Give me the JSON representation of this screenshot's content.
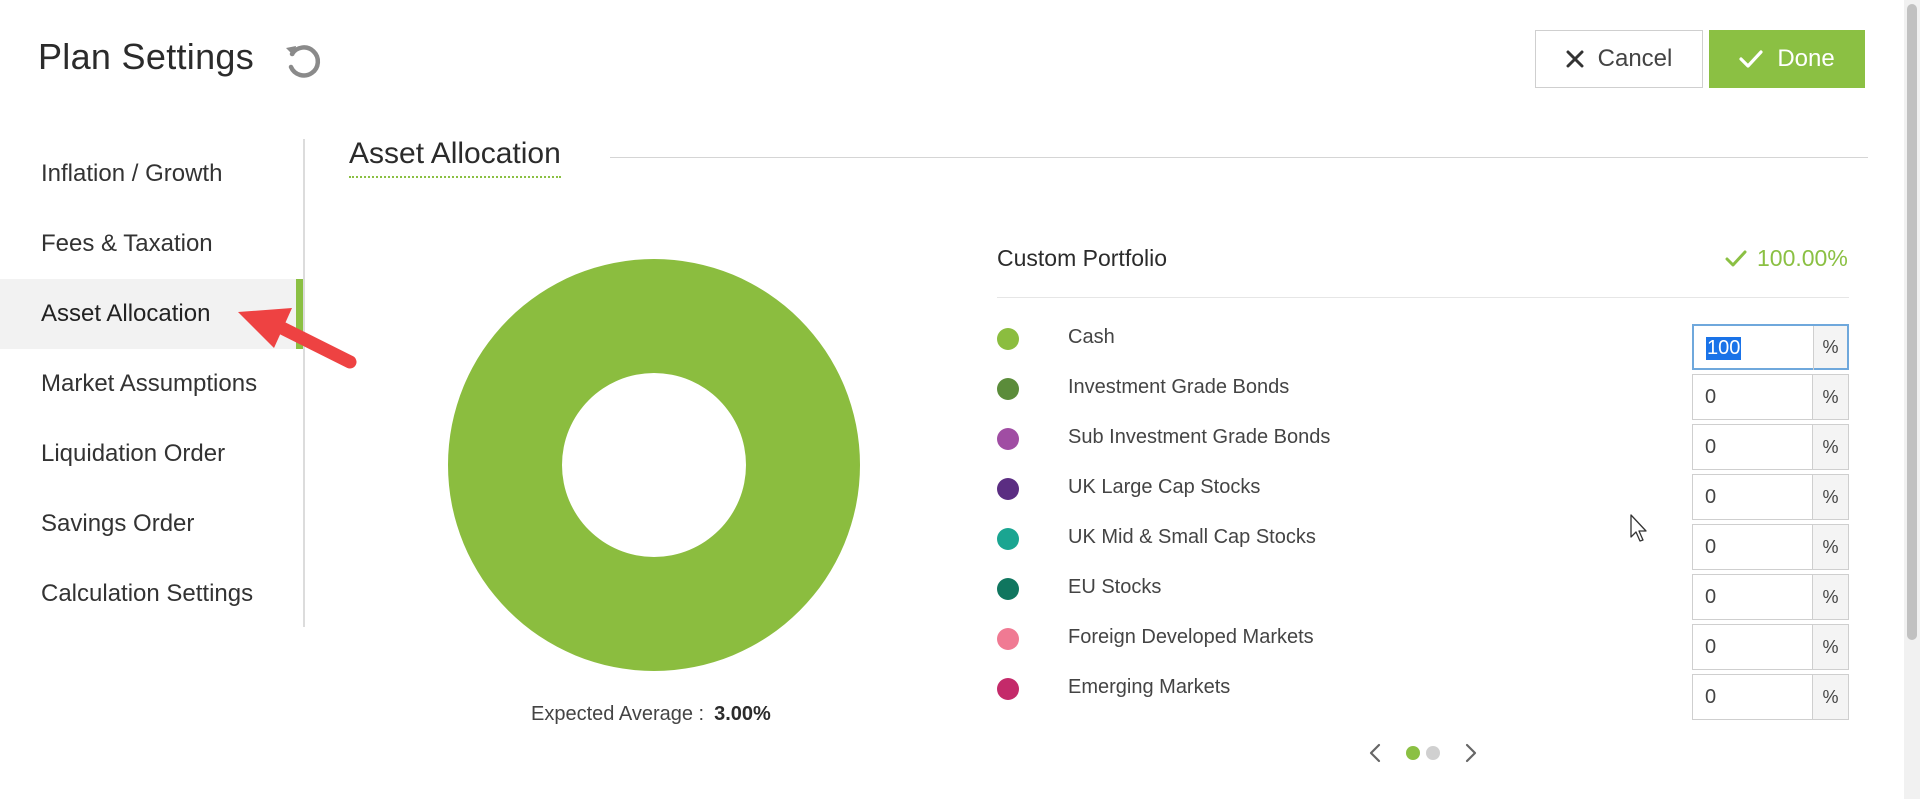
{
  "header": {
    "title": "Plan Settings",
    "cancel_label": "Cancel",
    "done_label": "Done"
  },
  "sidebar": {
    "items": [
      {
        "label": "Inflation / Growth"
      },
      {
        "label": "Fees & Taxation"
      },
      {
        "label": "Asset Allocation",
        "active": true
      },
      {
        "label": "Market Assumptions"
      },
      {
        "label": "Liquidation Order"
      },
      {
        "label": "Savings Order"
      },
      {
        "label": "Calculation Settings"
      }
    ]
  },
  "section": {
    "title": "Asset Allocation"
  },
  "chart": {
    "expected_label": "Expected Average :",
    "expected_value": "3.00%"
  },
  "chart_data": {
    "type": "pie",
    "categories": [
      "Cash",
      "Investment Grade Bonds",
      "Sub Investment Grade Bonds",
      "UK Large Cap Stocks",
      "UK Mid & Small Cap Stocks",
      "EU Stocks",
      "Foreign Developed Markets",
      "Emerging Markets"
    ],
    "values": [
      100,
      0,
      0,
      0,
      0,
      0,
      0,
      0
    ],
    "colors": [
      "#8bbd3f",
      "#5b8c3a",
      "#a04da3",
      "#5b2d82",
      "#1aa591",
      "#10765f",
      "#f07a93",
      "#c42a6a"
    ],
    "donut": true,
    "title": "",
    "legend": "right"
  },
  "portfolio": {
    "name": "Custom Portfolio",
    "total": "100.00%",
    "unit": "%",
    "assets": [
      {
        "label": "Cash",
        "value": "100",
        "color": "#8bbd3f"
      },
      {
        "label": "Investment Grade Bonds",
        "value": "0",
        "color": "#5b8c3a"
      },
      {
        "label": "Sub Investment Grade Bonds",
        "value": "0",
        "color": "#a04da3"
      },
      {
        "label": "UK Large Cap Stocks",
        "value": "0",
        "color": "#5b2d82"
      },
      {
        "label": "UK Mid & Small Cap Stocks",
        "value": "0",
        "color": "#1aa591"
      },
      {
        "label": "EU Stocks",
        "value": "0",
        "color": "#10765f"
      },
      {
        "label": "Foreign Developed Markets",
        "value": "0",
        "color": "#f07a93"
      },
      {
        "label": "Emerging Markets",
        "value": "0",
        "color": "#c42a6a"
      }
    ]
  },
  "pager": {
    "page": 1,
    "pages": 2,
    "active_color": "#8bc043",
    "inactive_color": "#d0d0d0"
  },
  "icons": {
    "refresh": "refresh-icon",
    "cancel": "close-icon",
    "done": "check-icon",
    "total_ok": "check-icon",
    "prev": "chevron-left-icon",
    "next": "chevron-right-icon"
  },
  "colors": {
    "accent": "#8bc043"
  }
}
